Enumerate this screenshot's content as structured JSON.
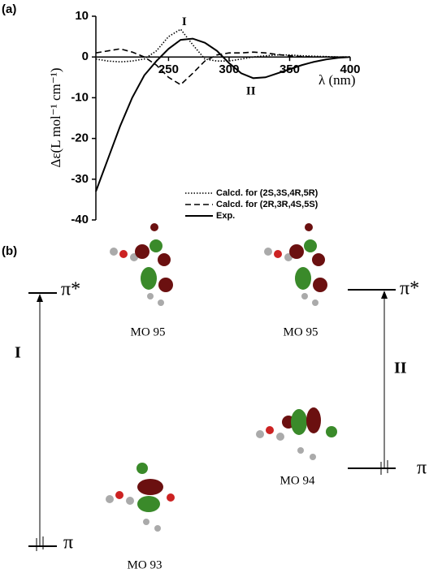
{
  "chart_data": {
    "type": "line",
    "panel_label": "(a)",
    "x_label": "λ (nm)",
    "y_label": "Δε(L mol⁻¹ cm⁻¹)",
    "x": [
      190,
      200,
      210,
      220,
      230,
      240,
      250,
      260,
      270,
      280,
      290,
      300,
      310,
      320,
      330,
      340,
      350,
      360,
      370,
      380,
      390,
      400
    ],
    "series": [
      {
        "name": "Calcd. for (2S,3S,4R,5R)",
        "color": "#000000",
        "line_style": "dotted",
        "values": [
          -0.5,
          -1,
          -1.2,
          -1,
          -0.5,
          1.5,
          5,
          6.8,
          3,
          -0.5,
          -1,
          -1,
          -0.5,
          0,
          0.3,
          0.5,
          0.5,
          0.3,
          0.2,
          0.1,
          0,
          0
        ]
      },
      {
        "name": "Calcd. for (2R,3R,4S,5S)",
        "color": "#000000",
        "line_style": "dashed",
        "values": [
          1,
          1.5,
          2,
          1.2,
          0,
          -2,
          -5,
          -6.8,
          -4,
          -1,
          0.5,
          1,
          1,
          1.2,
          1,
          0.6,
          0.3,
          0.1,
          0,
          0,
          0,
          0
        ]
      },
      {
        "name": "Exp.",
        "color": "#000000",
        "line_style": "solid",
        "values": [
          -33,
          -25,
          -17,
          -10,
          -4.5,
          -1,
          2,
          4.2,
          4.5,
          3.5,
          1.5,
          -1.5,
          -4,
          -5.2,
          -5,
          -4,
          -3,
          -2,
          -1.2,
          -0.6,
          -0.2,
          0
        ]
      }
    ],
    "annotations": [
      {
        "text": "I",
        "x": 263,
        "y": 8.5
      },
      {
        "text": "II",
        "x": 318,
        "y": -8.5
      }
    ],
    "xlim": [
      190,
      400
    ],
    "xticks": [
      250,
      300,
      350,
      400
    ],
    "ylim": [
      -40,
      10
    ],
    "yticks": [
      -40,
      -30,
      -20,
      -10,
      0,
      10
    ],
    "legend": "lower-right"
  },
  "diagram": {
    "panel_label": "(b)",
    "levels": [
      {
        "label": "π*"
      },
      {
        "label": "π"
      },
      {
        "label": "π*"
      },
      {
        "label": "π"
      }
    ],
    "transitions": [
      {
        "label": "I"
      },
      {
        "label": "II"
      }
    ],
    "orbitals": [
      {
        "label": "MO 95"
      },
      {
        "label": "MO 95"
      },
      {
        "label": "MO 94"
      },
      {
        "label": "MO 93"
      }
    ]
  }
}
